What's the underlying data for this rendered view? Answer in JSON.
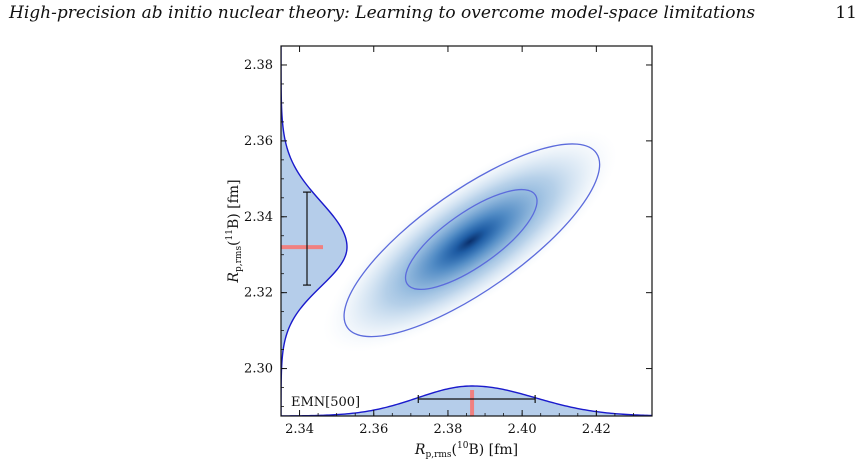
{
  "header": {
    "title": "High-precision ab initio nuclear theory: Learning to overcome model-space limitations",
    "page_number": "11"
  },
  "chart_data": {
    "type": "heatmap",
    "subtype": "2d-density-with-marginals",
    "xlabel": "R_p,rms(¹⁰B) [fm]",
    "ylabel": "R_p,rms(¹¹B) [fm]",
    "xlim": [
      2.335,
      2.435
    ],
    "ylim": [
      2.2875,
      2.385
    ],
    "x_ticks": [
      "2.34",
      "2.36",
      "2.38",
      "2.40",
      "2.42"
    ],
    "y_ticks": [
      "2.30",
      "2.32",
      "2.34",
      "2.36",
      "2.38"
    ],
    "annotation": "EMN[500]",
    "colors": {
      "density": "#1f5fa8",
      "contour": "#5c6bdc",
      "marginal_line": "#1a1acc",
      "marginal_fill": "#b5cdea",
      "median": "#f08080",
      "interval": "#111111"
    },
    "density_center": {
      "x": 2.386,
      "y": 2.3335
    },
    "x_marginal": {
      "median": 2.3865,
      "interval": [
        2.372,
        2.4035
      ]
    },
    "y_marginal": {
      "median": 2.332,
      "interval": [
        2.322,
        2.3465
      ]
    }
  }
}
